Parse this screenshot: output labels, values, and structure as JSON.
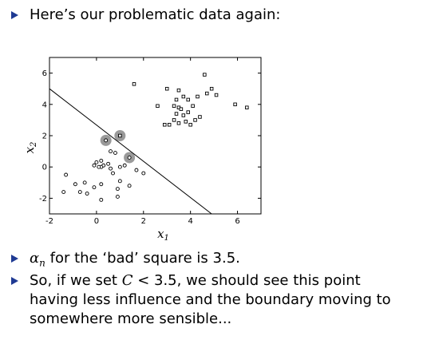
{
  "bullets": {
    "b1": "Here’s our problematic data again:",
    "b2_symbol": "α",
    "b2_sub": "n",
    "b2_rest": " for the ‘bad’ square is 3.5.",
    "b3_pre": "So, if we set ",
    "b3_var": "C",
    "b3_post": " < 3.5, we should see this point having less influence and the boundary moving to somewhere more sensible..."
  },
  "chart_data": {
    "type": "scatter",
    "title": "",
    "xlabel": "x1",
    "ylabel": "x2",
    "xlim": [
      -2,
      7
    ],
    "ylim": [
      -3,
      7
    ],
    "xticks": [
      -2,
      0,
      2,
      4,
      6
    ],
    "yticks": [
      -2,
      0,
      2,
      4,
      6
    ],
    "boundary_line": [
      [
        -2,
        5.0
      ],
      [
        4.9,
        -3.0
      ]
    ],
    "series": [
      {
        "marker": "square",
        "points": [
          [
            4.6,
            5.9
          ],
          [
            1.6,
            5.3
          ],
          [
            3.0,
            5.0
          ],
          [
            3.5,
            4.9
          ],
          [
            4.9,
            5.0
          ],
          [
            4.7,
            4.7
          ],
          [
            5.1,
            4.6
          ],
          [
            4.3,
            4.5
          ],
          [
            3.7,
            4.5
          ],
          [
            3.4,
            4.3
          ],
          [
            3.9,
            4.3
          ],
          [
            2.6,
            3.9
          ],
          [
            3.3,
            3.9
          ],
          [
            3.5,
            3.8
          ],
          [
            4.1,
            3.9
          ],
          [
            3.6,
            3.7
          ],
          [
            3.9,
            3.5
          ],
          [
            3.4,
            3.4
          ],
          [
            3.7,
            3.3
          ],
          [
            4.4,
            3.2
          ],
          [
            3.3,
            3.0
          ],
          [
            4.2,
            3.0
          ],
          [
            3.8,
            2.9
          ],
          [
            3.5,
            2.8
          ],
          [
            3.1,
            2.7
          ],
          [
            2.9,
            2.7
          ],
          [
            4.0,
            2.7
          ],
          [
            5.9,
            4.0
          ],
          [
            6.4,
            3.8
          ],
          [
            1.0,
            2.0
          ]
        ]
      },
      {
        "marker": "circle",
        "points": [
          [
            0.4,
            1.7
          ],
          [
            1.4,
            0.6
          ],
          [
            0.8,
            0.9
          ],
          [
            0.6,
            1.0
          ],
          [
            0.2,
            0.4
          ],
          [
            0.3,
            0.1
          ],
          [
            0.5,
            0.2
          ],
          [
            0.0,
            0.3
          ],
          [
            0.2,
            0.0
          ],
          [
            -0.1,
            0.1
          ],
          [
            0.1,
            0.0
          ],
          [
            0.6,
            -0.1
          ],
          [
            1.0,
            0.0
          ],
          [
            1.2,
            0.1
          ],
          [
            0.7,
            -0.4
          ],
          [
            1.7,
            -0.2
          ],
          [
            2.0,
            -0.4
          ],
          [
            -1.3,
            -0.5
          ],
          [
            1.0,
            -0.9
          ],
          [
            -0.5,
            -1.0
          ],
          [
            -0.9,
            -1.1
          ],
          [
            0.2,
            -1.1
          ],
          [
            1.4,
            -1.2
          ],
          [
            -0.1,
            -1.3
          ],
          [
            0.9,
            -1.4
          ],
          [
            -1.4,
            -1.6
          ],
          [
            -0.7,
            -1.6
          ],
          [
            -0.4,
            -1.7
          ],
          [
            0.9,
            -1.9
          ],
          [
            0.2,
            -2.1
          ]
        ]
      }
    ],
    "highlighted": [
      [
        0.4,
        1.7
      ],
      [
        1.0,
        2.0
      ],
      [
        1.4,
        0.6
      ]
    ]
  }
}
